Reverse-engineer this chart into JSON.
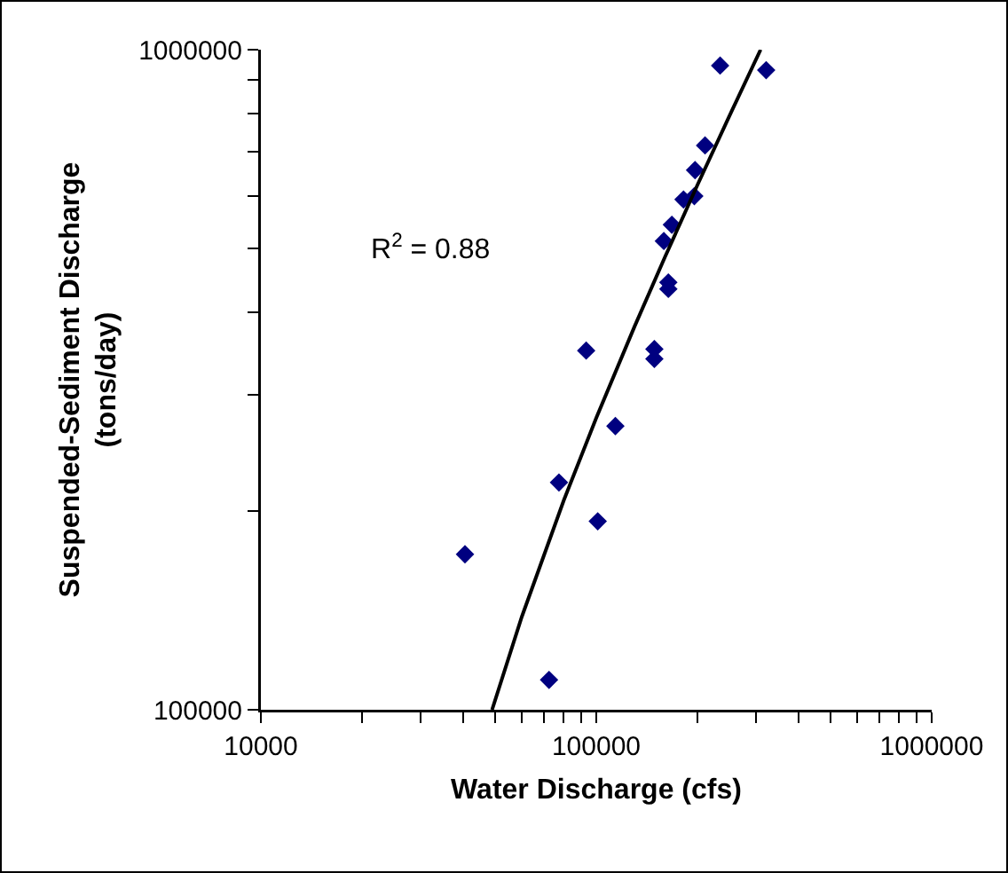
{
  "chart_data": {
    "type": "scatter",
    "xlabel": "Water Discharge (cfs)",
    "ylabel": "Suspended-Sediment Discharge\n(tons/day)",
    "log": "xy",
    "grid": false,
    "marker": "diamond",
    "xlim": [
      10000,
      1000000
    ],
    "ylim": [
      100000,
      1000000
    ],
    "xticks": [
      10000,
      {
        "value": 20000,
        "label": null
      },
      {
        "value": 30000,
        "label": null
      },
      {
        "value": 40000,
        "label": null
      },
      {
        "value": 50000,
        "label": null
      },
      {
        "value": 60000,
        "label": null
      },
      {
        "value": 70000,
        "label": null
      },
      {
        "value": 80000,
        "label": null
      },
      {
        "value": 90000,
        "label": null
      },
      100000,
      {
        "value": 200000,
        "label": null
      },
      {
        "value": 300000,
        "label": null
      },
      {
        "value": 400000,
        "label": null
      },
      {
        "value": 500000,
        "label": null
      },
      {
        "value": 600000,
        "label": null
      },
      {
        "value": 700000,
        "label": null
      },
      {
        "value": 800000,
        "label": null
      },
      {
        "value": 900000,
        "label": null
      },
      1000000
    ],
    "yticks": [
      100000,
      {
        "value": 200000,
        "label": null
      },
      {
        "value": 300000,
        "label": null
      },
      {
        "value": 400000,
        "label": null
      },
      {
        "value": 500000,
        "label": null
      },
      {
        "value": 600000,
        "label": null
      },
      {
        "value": 700000,
        "label": null
      },
      {
        "value": 800000,
        "label": null
      },
      {
        "value": 900000,
        "label": null
      },
      1000000
    ],
    "annotations": [
      "R$^{2}$ = 0.88"
    ],
    "series": [
      {
        "color": "#000080",
        "x": [
          40600,
          72300,
          77400,
          93300,
          101000,
          114000,
          149000,
          149000,
          164000,
          164000,
          159000,
          168000,
          182000,
          196000,
          197000,
          211000,
          234000,
          321000
        ],
        "values": [
          172000,
          111000,
          221000,
          350000,
          193000,
          269000,
          352000,
          340000,
          444000,
          434000,
          513000,
          543000,
          593000,
          600000,
          657000,
          716000,
          946000,
          931000
        ]
      },
      {
        "type": "line",
        "color": "#000000",
        "marker": "none",
        "line_style": "solid",
        "x": [
          48900,
          60000,
          80000,
          100000,
          130000,
          160000,
          200000,
          250000,
          309000
        ],
        "values": [
          100000,
          138400,
          207600,
          276800,
          380600,
          484400,
          622800,
          795800,
          1000000
        ]
      }
    ]
  }
}
